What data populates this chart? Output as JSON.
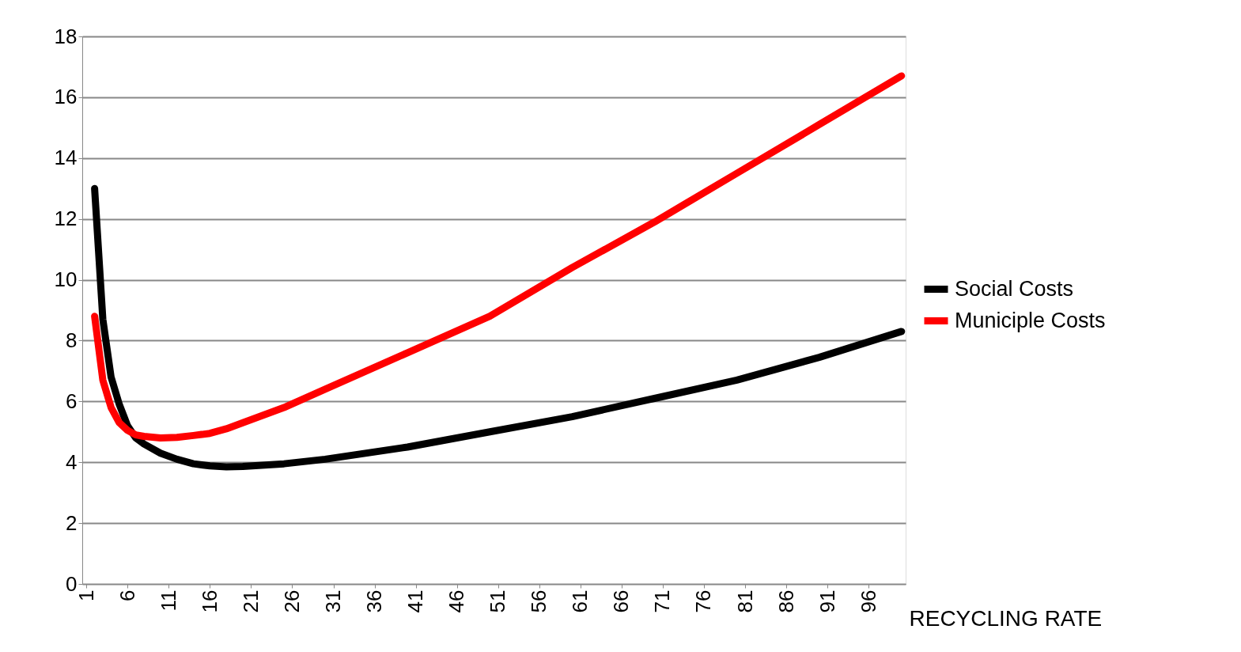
{
  "chart_data": {
    "type": "line",
    "xlabel": "RECYCLING RATE",
    "x": [
      2,
      3,
      4,
      5,
      6,
      7,
      8,
      10,
      12,
      14,
      16,
      18,
      20,
      25,
      30,
      40,
      50,
      60,
      70,
      80,
      90,
      100
    ],
    "series": [
      {
        "name": "Social Costs",
        "color": "#000000",
        "values": [
          13.0,
          8.7,
          6.8,
          5.9,
          5.2,
          4.8,
          4.6,
          4.3,
          4.1,
          3.95,
          3.88,
          3.85,
          3.86,
          3.95,
          4.1,
          4.5,
          5.0,
          5.5,
          6.1,
          6.7,
          7.45,
          8.3
        ]
      },
      {
        "name": "Municiple Costs",
        "color": "#ff0000",
        "values": [
          8.8,
          6.7,
          5.8,
          5.3,
          5.05,
          4.9,
          4.85,
          4.8,
          4.82,
          4.88,
          4.95,
          5.1,
          5.3,
          5.8,
          6.4,
          7.6,
          8.8,
          10.4,
          11.9,
          13.5,
          15.1,
          16.7
        ]
      }
    ],
    "xlim": [
      0.5,
      100.5
    ],
    "xticks": [
      1,
      6,
      11,
      16,
      21,
      26,
      31,
      36,
      41,
      46,
      51,
      56,
      61,
      66,
      71,
      76,
      81,
      86,
      91,
      96
    ],
    "ylim": [
      0,
      18
    ],
    "yticks": [
      0,
      2,
      4,
      6,
      8,
      10,
      12,
      14,
      16,
      18
    ],
    "grid": "y",
    "legend": "right",
    "marker": "none",
    "line_style": "solid"
  }
}
